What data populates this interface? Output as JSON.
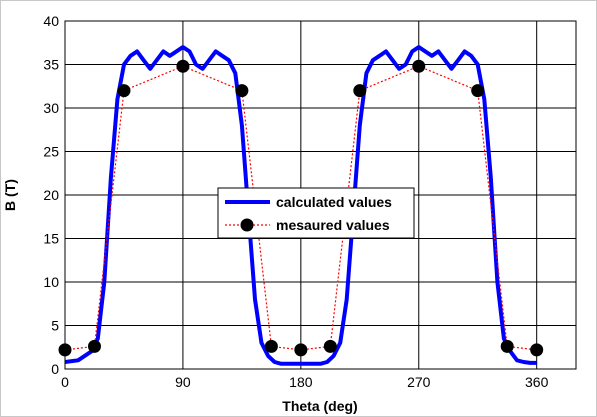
{
  "chart_data": {
    "type": "line",
    "title": "",
    "xlabel": "Theta (deg)",
    "ylabel": "B (T)",
    "xlim": [
      0,
      390
    ],
    "ylim": [
      0,
      40
    ],
    "xticks": [
      0,
      90,
      180,
      270,
      360
    ],
    "yticks": [
      0,
      5,
      10,
      15,
      20,
      25,
      30,
      35,
      40
    ],
    "grid": true,
    "legend_position": "center",
    "series": [
      {
        "name": "calculated values",
        "color": "#0000ff",
        "style": "solid",
        "x": [
          0,
          10,
          20,
          25,
          30,
          35,
          40,
          45,
          50,
          55,
          60,
          65,
          70,
          75,
          80,
          85,
          90,
          95,
          100,
          105,
          110,
          115,
          120,
          125,
          130,
          135,
          140,
          145,
          150,
          155,
          160,
          165,
          170,
          175,
          180,
          185,
          190,
          195,
          200,
          205,
          210,
          215,
          220,
          225,
          230,
          235,
          240,
          245,
          250,
          255,
          260,
          265,
          270,
          275,
          280,
          285,
          290,
          295,
          300,
          305,
          310,
          315,
          320,
          325,
          330,
          335,
          340,
          345,
          350,
          355,
          360
        ],
        "y": [
          0.8,
          1.0,
          2.0,
          3.5,
          10.0,
          22.0,
          31.0,
          35.0,
          36.0,
          36.5,
          35.5,
          34.5,
          35.5,
          36.5,
          36.0,
          36.5,
          37.0,
          36.5,
          35.0,
          34.5,
          35.5,
          36.5,
          36.0,
          35.5,
          34.0,
          28.0,
          18.0,
          8.0,
          3.0,
          1.5,
          0.8,
          0.6,
          0.6,
          0.6,
          0.6,
          0.6,
          0.6,
          0.6,
          0.8,
          1.5,
          3.0,
          8.0,
          18.0,
          28.0,
          34.0,
          35.5,
          36.0,
          36.5,
          35.5,
          34.5,
          35.0,
          36.5,
          37.0,
          36.5,
          36.0,
          36.5,
          35.5,
          34.5,
          35.5,
          36.5,
          36.0,
          35.0,
          31.0,
          22.0,
          10.0,
          3.5,
          2.0,
          1.0,
          0.8,
          0.7,
          0.7
        ]
      },
      {
        "name": "mesaured values",
        "color": "#ff0000",
        "style": "dotted",
        "marker": "filled-circle",
        "x": [
          0,
          22.5,
          45,
          90,
          135,
          157.5,
          180,
          202.5,
          225,
          270,
          315,
          337.5,
          360
        ],
        "y": [
          2.2,
          2.6,
          32.0,
          34.8,
          32.0,
          2.6,
          2.2,
          2.6,
          32.0,
          34.8,
          32.0,
          2.6,
          2.2
        ]
      }
    ]
  }
}
